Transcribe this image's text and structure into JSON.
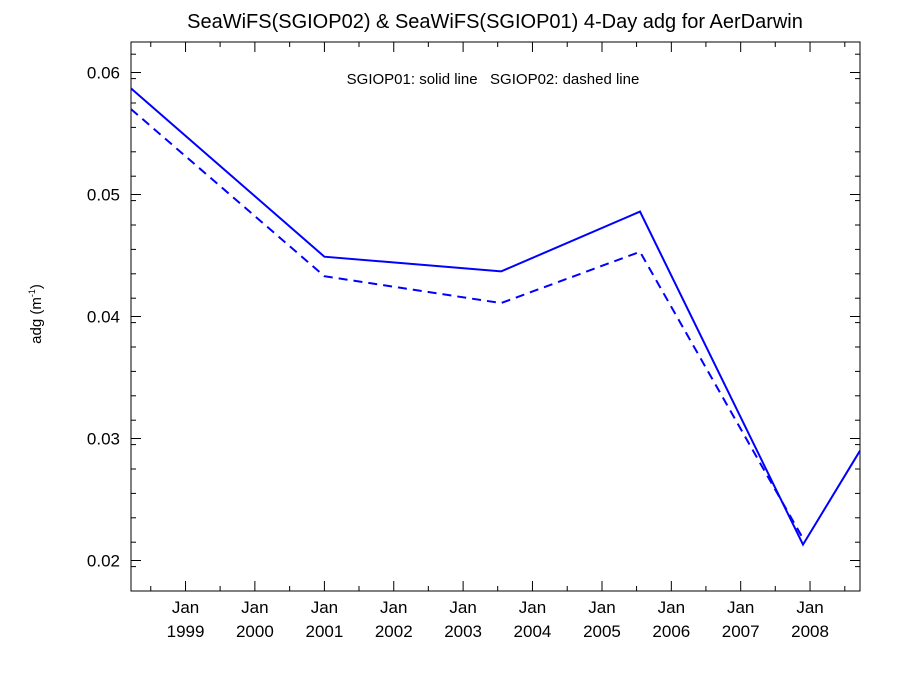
{
  "chart_data": {
    "type": "line",
    "title": "SeaWiFS(SGIOP02) & SeaWiFS(SGIOP01) 4-Day adg for AerDarwin",
    "ylabel_main": "adg (m",
    "ylabel_sup": "-1",
    "ylabel_close": ")",
    "annotation": "SGIOP01: solid line   SGIOP02: dashed line",
    "xlim": [
      "1998-03-20",
      "2008-09-20"
    ],
    "ylim": [
      0.0175,
      0.0625
    ],
    "yticks": [
      0.02,
      0.03,
      0.04,
      0.05,
      0.06
    ],
    "ytick_labels": [
      "0.02",
      "0.03",
      "0.04",
      "0.05",
      "0.06"
    ],
    "xtick_dates": [
      "1999-01-01",
      "2000-01-01",
      "2001-01-01",
      "2002-01-01",
      "2003-01-01",
      "2004-01-01",
      "2005-01-01",
      "2006-01-01",
      "2007-01-01",
      "2008-01-01"
    ],
    "xtick_labels": [
      [
        "Jan",
        "1999"
      ],
      [
        "Jan",
        "2000"
      ],
      [
        "Jan",
        "2001"
      ],
      [
        "Jan",
        "2002"
      ],
      [
        "Jan",
        "2003"
      ],
      [
        "Jan",
        "2004"
      ],
      [
        "Jan",
        "2005"
      ],
      [
        "Jan",
        "2006"
      ],
      [
        "Jan",
        "2007"
      ],
      [
        "Jan",
        "2008"
      ]
    ],
    "color": "#0000ff",
    "series": [
      {
        "style": "solid",
        "x": [
          "1998-03-20",
          "2001-01-01",
          "2003-07-20",
          "2005-07-20",
          "2007-11-25",
          "2008-09-20"
        ],
        "y": [
          0.0587,
          0.0449,
          0.0437,
          0.0486,
          0.0213,
          0.029
        ]
      },
      {
        "style": "dashed",
        "x": [
          "1998-03-20",
          "2001-01-01",
          "2003-07-20",
          "2005-07-20",
          "2007-11-25"
        ],
        "y": [
          0.057,
          0.0433,
          0.0411,
          0.0453,
          0.0218
        ]
      }
    ]
  }
}
